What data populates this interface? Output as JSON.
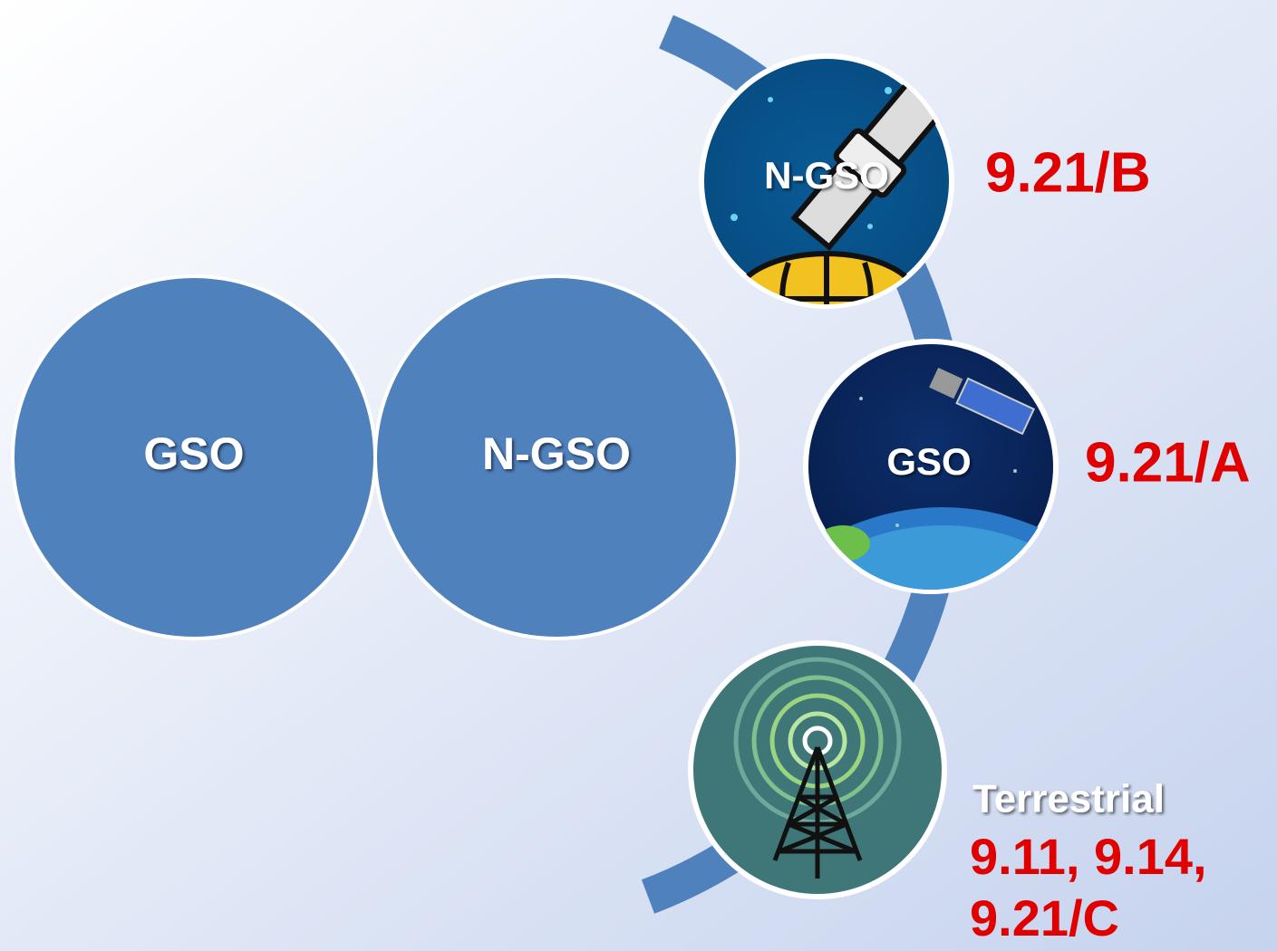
{
  "circles": [
    {
      "label": "GSO"
    },
    {
      "label": "N-GSO"
    }
  ],
  "nodes": [
    {
      "label": "N-GSO",
      "provision": "9.21/B"
    },
    {
      "label": "GSO",
      "provision": "9.21/A"
    },
    {
      "caption": "Terrestrial",
      "provision": [
        "9.11, 9.14,",
        "9.21/C"
      ]
    }
  ]
}
